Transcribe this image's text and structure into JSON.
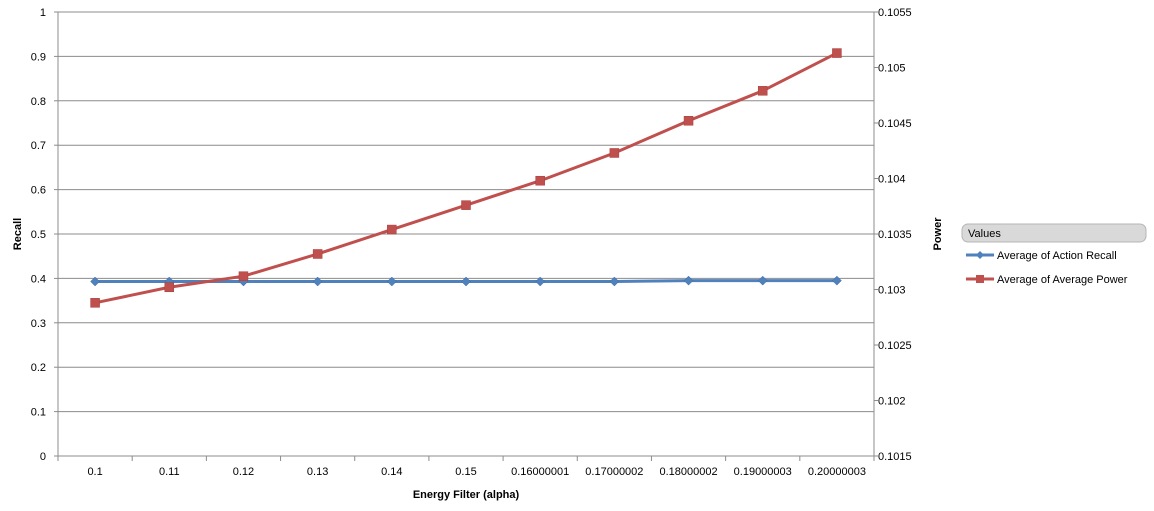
{
  "chart_data": {
    "type": "line",
    "title": "",
    "xlabel": "Energy Filter (alpha)",
    "ylabel": "Recall",
    "y2label": "Power",
    "categories": [
      "0.1",
      "0.11",
      "0.12",
      "0.13",
      "0.14",
      "0.15",
      "0.16000001",
      "0.17000002",
      "0.18000002",
      "0.19000003",
      "0.20000003"
    ],
    "ylim": [
      0,
      1
    ],
    "yticks": [
      "0",
      "0.1",
      "0.2",
      "0.3",
      "0.4",
      "0.5",
      "0.6",
      "0.7",
      "0.8",
      "0.9",
      "1"
    ],
    "y2lim": [
      0.1015,
      0.1055
    ],
    "y2ticks": [
      "0.1015",
      "0.102",
      "0.1025",
      "0.103",
      "0.1035",
      "0.104",
      "0.1045",
      "0.105",
      "0.1055"
    ],
    "grid": true,
    "legend": {
      "title": "Values",
      "placement": "right"
    },
    "series": [
      {
        "name": "Average of Action Recall",
        "axis": "left",
        "color": "#4F81BD",
        "marker": "diamond",
        "values": [
          0.393,
          0.393,
          0.393,
          0.393,
          0.393,
          0.393,
          0.393,
          0.393,
          0.395,
          0.395,
          0.395
        ]
      },
      {
        "name": "Average of Average Power",
        "axis": "right",
        "color": "#C0504D",
        "marker": "square",
        "values": [
          0.10288,
          0.10302,
          0.10312,
          0.10332,
          0.10354,
          0.10376,
          0.10398,
          0.10423,
          0.10452,
          0.10479,
          0.10513
        ]
      }
    ]
  }
}
